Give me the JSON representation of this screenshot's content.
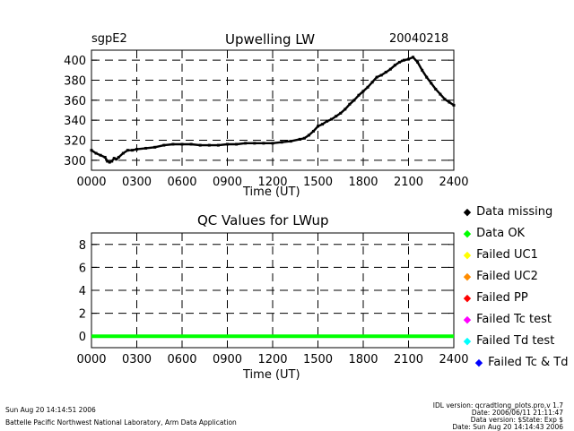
{
  "chart_data": [
    {
      "type": "line",
      "title": "Upwelling LW",
      "site": "sgpE2",
      "date": "20040218",
      "xlabel": "Time (UT)",
      "ylabel": "",
      "xlim": [
        0,
        2400
      ],
      "ylim": [
        290,
        410
      ],
      "xticks": [
        "0000",
        "0300",
        "0600",
        "0900",
        "1200",
        "1500",
        "1800",
        "2100",
        "2400"
      ],
      "yticks": [
        300,
        320,
        340,
        360,
        380,
        400
      ],
      "grid": true,
      "series": [
        {
          "name": "LWup",
          "color": "#000000",
          "x": [
            0,
            30,
            60,
            90,
            105,
            120,
            135,
            150,
            165,
            180,
            210,
            240,
            270,
            300,
            360,
            420,
            480,
            540,
            600,
            660,
            720,
            780,
            840,
            900,
            960,
            1020,
            1080,
            1140,
            1200,
            1260,
            1320,
            1380,
            1410,
            1440,
            1470,
            1500,
            1530,
            1560,
            1590,
            1620,
            1650,
            1680,
            1710,
            1740,
            1770,
            1800,
            1830,
            1860,
            1890,
            1920,
            1950,
            1980,
            2010,
            2040,
            2070,
            2100,
            2130,
            2160,
            2190,
            2220,
            2250,
            2280,
            2310,
            2340,
            2370,
            2400
          ],
          "y": [
            310,
            307,
            305,
            303,
            299,
            298,
            299,
            302,
            301,
            303,
            307,
            310,
            310,
            311,
            312,
            313,
            315,
            316,
            316,
            316,
            315,
            315,
            315,
            316,
            316,
            317,
            317,
            317,
            317,
            318,
            319,
            321,
            322,
            325,
            329,
            334,
            336,
            339,
            341,
            344,
            347,
            351,
            356,
            360,
            365,
            369,
            373,
            378,
            383,
            385,
            388,
            391,
            395,
            398,
            400,
            401,
            403,
            398,
            390,
            383,
            377,
            371,
            366,
            361,
            358,
            355
          ]
        }
      ]
    },
    {
      "type": "line",
      "title": "QC Values for LWup",
      "xlabel": "Time (UT)",
      "ylabel": "",
      "xlim": [
        0,
        2400
      ],
      "ylim": [
        -1,
        9
      ],
      "xticks": [
        "0000",
        "0300",
        "0600",
        "0900",
        "1200",
        "1500",
        "1800",
        "2100",
        "2400"
      ],
      "yticks": [
        0,
        2,
        4,
        6,
        8
      ],
      "grid": true,
      "series": [
        {
          "name": "QC",
          "color": "#00ff00",
          "x": [
            0,
            2400
          ],
          "y": [
            0,
            0
          ]
        }
      ]
    }
  ],
  "legend": [
    {
      "label": "Data missing",
      "color": "#000000"
    },
    {
      "label": "Data OK",
      "color": "#00ff00"
    },
    {
      "label": "Failed UC1",
      "color": "#ffff00"
    },
    {
      "label": "Failed UC2",
      "color": "#ff8c00"
    },
    {
      "label": "Failed PP",
      "color": "#ff0000"
    },
    {
      "label": "Failed Tc test",
      "color": "#ff00ff"
    },
    {
      "label": "Failed Td test",
      "color": "#00ffff"
    },
    {
      "label": "Failed Tc & Td",
      "color": "#0000ff"
    }
  ],
  "footer": {
    "left_timestamp": "Sun Aug 20 14:14:51 2006",
    "left_org": "Battelle Pacific Northwest National Laboratory, Arm Data Application",
    "right_lines": [
      "IDL version: qcradtlong_plots.pro,v 1.7",
      "Date: 2006/06/11 21:11:47",
      "Data version: $State: Exp $",
      "Date: Sun Aug 20 14:14:43 2006"
    ]
  }
}
